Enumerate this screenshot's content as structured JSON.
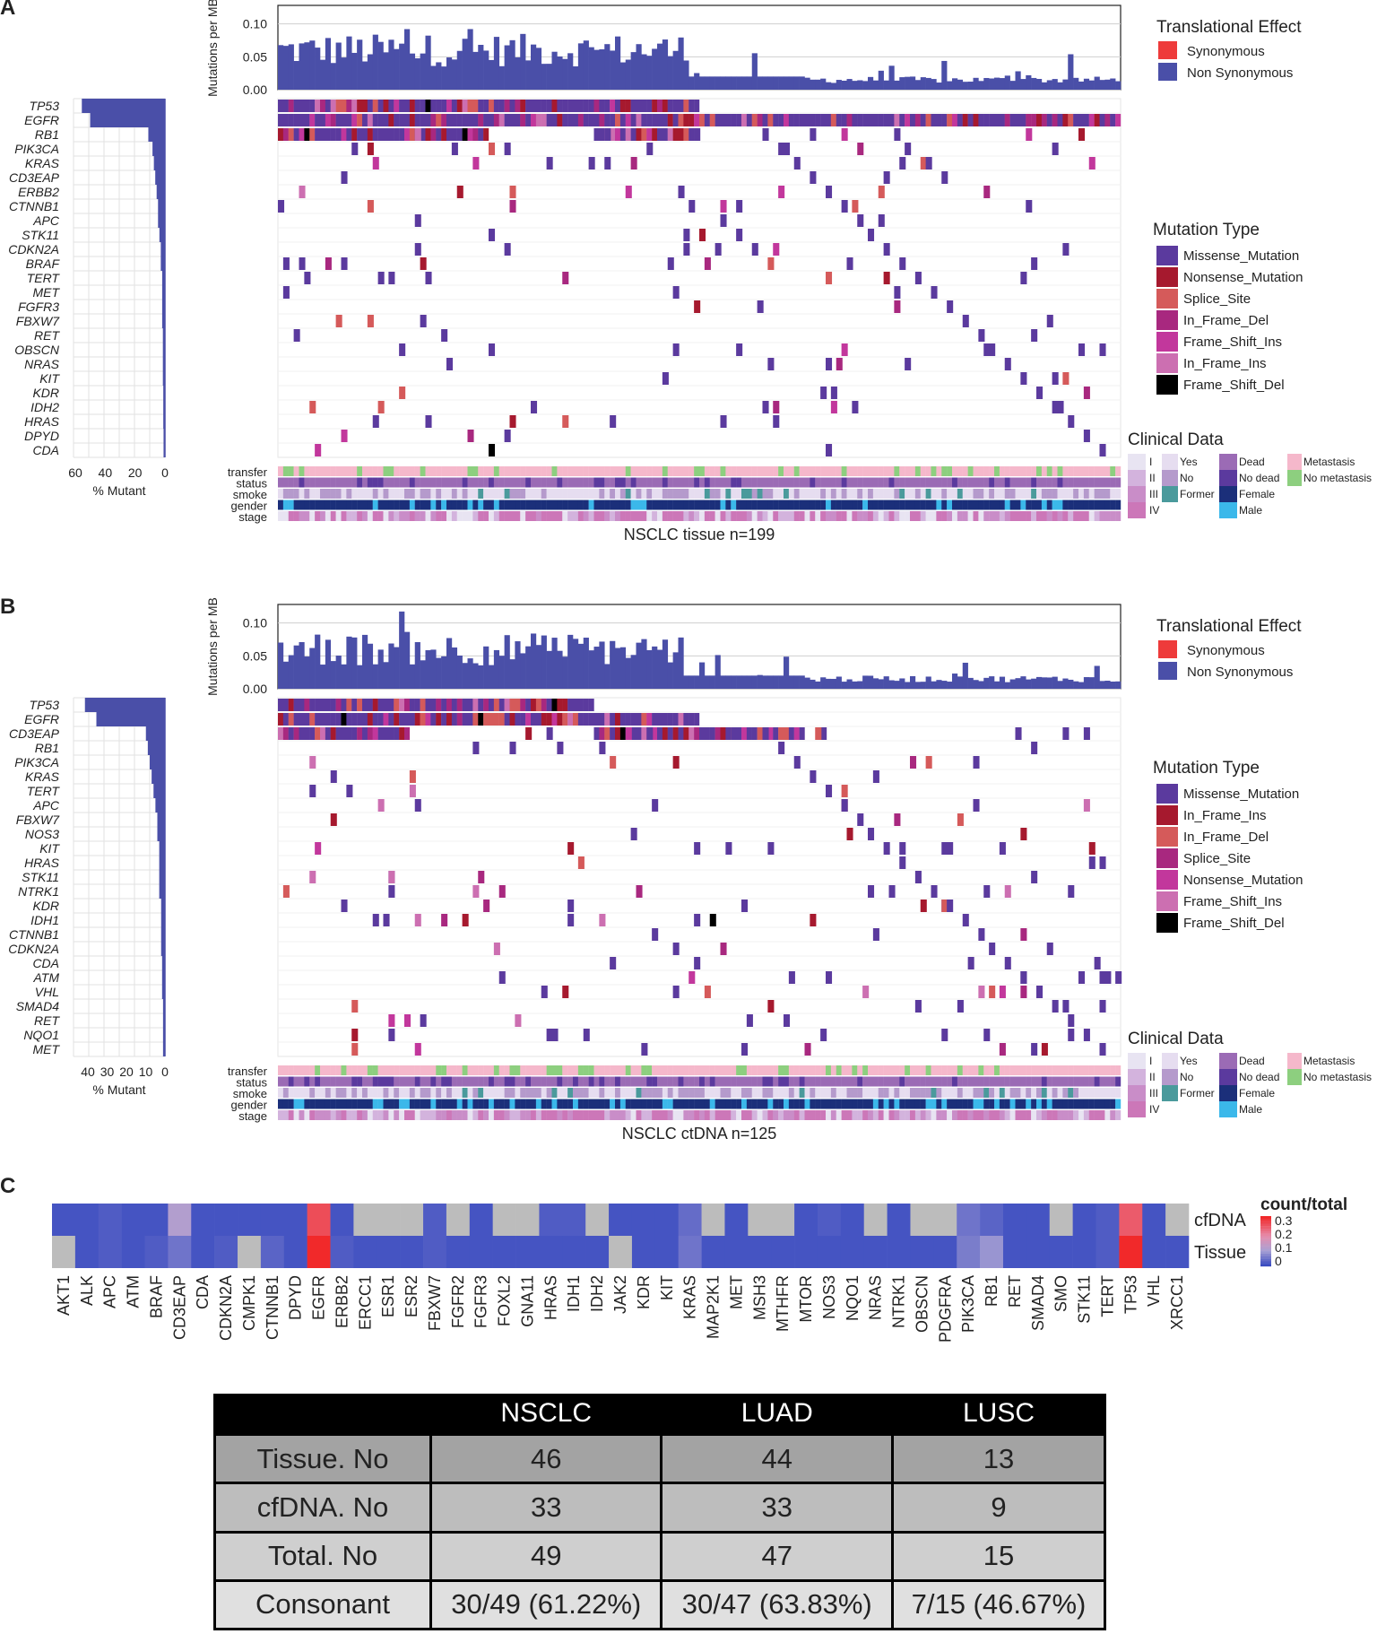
{
  "panel_labels": {
    "a": "A",
    "b": "B",
    "c": "C"
  },
  "common": {
    "y_axis_label": "Mutations per MB",
    "tmb_ticks": [
      "0.10",
      "0.05",
      "0.00"
    ],
    "pct_mutant_label": "% Mutant",
    "translational_effect_title": "Translational Effect",
    "translational_effect": [
      {
        "label": "Synonymous",
        "color": "#ee3b3b"
      },
      {
        "label": "Non Synonymous",
        "color": "#4a4fa8"
      }
    ],
    "mutation_type_title": "Mutation Type",
    "clinical_title": "Clinical Data",
    "clinical_rows": [
      "transfer",
      "status",
      "smoke",
      "gender",
      "stage"
    ],
    "stage_legend": [
      "I",
      "II",
      "III",
      "IV"
    ],
    "smoke_legend": [
      "Yes",
      "No",
      "Former"
    ],
    "status_legend": [
      "Dead",
      "No dead"
    ],
    "gender_legend": [
      "Female",
      "Male"
    ],
    "transfer_legend": [
      "Metastasis",
      "No metastasis"
    ]
  },
  "panelA": {
    "title": "NSCLC tissue n=199",
    "pct_ticks": [
      "60",
      "40",
      "20",
      "0"
    ],
    "mutation_types": [
      {
        "label": "Missense_Mutation",
        "color": "#5b3a9e"
      },
      {
        "label": "Nonsense_Mutation",
        "color": "#a6192e"
      },
      {
        "label": "Splice_Site",
        "color": "#d55a5a"
      },
      {
        "label": "In_Frame_Del",
        "color": "#a8287f"
      },
      {
        "label": "Frame_Shift_Ins",
        "color": "#c2379c"
      },
      {
        "label": "In_Frame_Ins",
        "color": "#cc6fb1"
      },
      {
        "label": "Frame_Shift_Del",
        "color": "#000000"
      }
    ],
    "genes": [
      "TP53",
      "EGFR",
      "RB1",
      "PIK3CA",
      "KRAS",
      "CD3EAP",
      "ERBB2",
      "CTNNB1",
      "APC",
      "STK11",
      "CDKN2A",
      "BRAF",
      "TERT",
      "MET",
      "FGFR3",
      "FBXW7",
      "RET",
      "OBSCN",
      "NRAS",
      "KIT",
      "KDR",
      "IDH2",
      "HRAS",
      "DPYD",
      "CDA"
    ],
    "pct": [
      60,
      54,
      12,
      9,
      8,
      7,
      6,
      5,
      5,
      4,
      3,
      3,
      2,
      2,
      2,
      2,
      1.5,
      1.5,
      1.5,
      1.5,
      1.2,
      1.2,
      1.2,
      1,
      1
    ]
  },
  "panelB": {
    "title": "NSCLC ctDNA n=125",
    "pct_ticks": [
      "40",
      "30",
      "20",
      "10",
      "0"
    ],
    "mutation_types": [
      {
        "label": "Missense_Mutation",
        "color": "#5b3a9e"
      },
      {
        "label": "In_Frame_Ins",
        "color": "#a6192e"
      },
      {
        "label": "In_Frame_Del",
        "color": "#d55a5a"
      },
      {
        "label": "Splice_Site",
        "color": "#a8287f"
      },
      {
        "label": "Nonsense_Mutation",
        "color": "#c2379c"
      },
      {
        "label": "Frame_Shift_Ins",
        "color": "#cc6fb1"
      },
      {
        "label": "Frame_Shift_Del",
        "color": "#000000"
      }
    ],
    "genes": [
      "TP53",
      "EGFR",
      "CD3EAP",
      "RB1",
      "PIK3CA",
      "KRAS",
      "TERT",
      "APC",
      "FBXW7",
      "NOS3",
      "KIT",
      "HRAS",
      "STK11",
      "NTRK1",
      "KDR",
      "IDH1",
      "CTNNB1",
      "CDKN2A",
      "CDA",
      "ATM",
      "VHL",
      "SMAD4",
      "RET",
      "NQO1",
      "MET"
    ],
    "pct": [
      42,
      36,
      10,
      9,
      8,
      7,
      6,
      5,
      4,
      4,
      3,
      3,
      3,
      3,
      2,
      2,
      2,
      2,
      1.5,
      1.5,
      1.5,
      1,
      1,
      1,
      1
    ]
  },
  "chart_data": [
    {
      "type": "heatmap",
      "title": "count/total",
      "rows": [
        "cfDNA",
        "Tissue"
      ],
      "colorbar_ticks": [
        "0.3",
        "0.2",
        "0.1",
        "0"
      ],
      "categories": [
        "AKT1",
        "ALK",
        "APC",
        "ATM",
        "BRAF",
        "CD3EAP",
        "CDA",
        "CDKN2A",
        "CMPK1",
        "CTNNB1",
        "DPYD",
        "EGFR",
        "ERBB2",
        "ERCC1",
        "ESR1",
        "ESR2",
        "FBXW7",
        "FGFR2",
        "FGFR3",
        "FOXL2",
        "GNA11",
        "HRAS",
        "IDH1",
        "IDH2",
        "JAK2",
        "KDR",
        "KIT",
        "KRAS",
        "MAP2K1",
        "MET",
        "MSH3",
        "MTHFR",
        "MTOR",
        "NOS3",
        "NQO1",
        "NRAS",
        "NTRK1",
        "OBSCN",
        "PDGFRA",
        "PIK3CA",
        "RB1",
        "RET",
        "SMAD4",
        "SMO",
        "STK11",
        "TERT",
        "TP53",
        "VHL",
        "XRCC1"
      ],
      "series": [
        {
          "name": "cfDNA",
          "values": [
            0.01,
            0.01,
            0.02,
            0.01,
            0.01,
            0.12,
            0.01,
            0.01,
            0.01,
            0.01,
            0.01,
            0.3,
            0.01,
            null,
            null,
            null,
            0.02,
            null,
            0.01,
            null,
            null,
            0.02,
            0.02,
            null,
            0.01,
            0.01,
            0.01,
            0.04,
            null,
            0.01,
            null,
            null,
            0.01,
            0.02,
            0.01,
            null,
            0.01,
            null,
            null,
            0.05,
            0.03,
            0.01,
            0.01,
            null,
            0.01,
            0.02,
            0.28,
            0.01,
            null
          ]
        },
        {
          "name": "Tissue",
          "values": [
            null,
            0.01,
            0.02,
            0.01,
            0.02,
            0.05,
            0.01,
            0.02,
            null,
            0.03,
            0.01,
            0.35,
            0.02,
            0.01,
            0.01,
            0.01,
            0.02,
            0.01,
            0.01,
            0.01,
            0.01,
            0.01,
            0.01,
            0.01,
            null,
            0.01,
            0.01,
            0.05,
            0.01,
            0.01,
            0.01,
            0.01,
            0.01,
            0.01,
            0.01,
            0.01,
            0.01,
            0.01,
            0.01,
            0.06,
            0.09,
            0.01,
            0.01,
            0.01,
            0.01,
            0.02,
            0.36,
            0.01,
            0.01
          ]
        }
      ]
    },
    {
      "type": "table",
      "columns": [
        "NSCLC",
        "LUAD",
        "LUSC"
      ],
      "rows": [
        {
          "label": "Tissue. No",
          "values": [
            "46",
            "44",
            "13"
          ]
        },
        {
          "label": "cfDNA. No",
          "values": [
            "33",
            "33",
            "9"
          ]
        },
        {
          "label": "Total. No",
          "values": [
            "49",
            "47",
            "15"
          ]
        },
        {
          "label": "Consonant",
          "values": [
            "30/49 (61.22%)",
            "30/47 (63.83%)",
            "7/15 (46.67%)"
          ]
        }
      ]
    }
  ]
}
